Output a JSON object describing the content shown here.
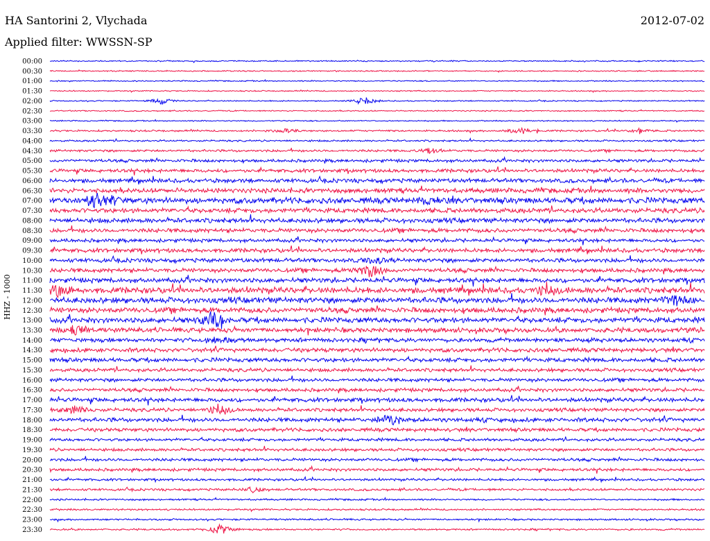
{
  "header": {
    "station": "HA Santorini 2, Vlychada",
    "date": "2012-07-02",
    "filter": "Applied filter: WWSSN-SP"
  },
  "channel_label": "HHZ - 1000",
  "colors": {
    "even_row": "#0000ee",
    "odd_row": "#ee1144"
  },
  "chart_data": {
    "type": "line",
    "title": "HA Santorini 2, Vlychada",
    "subtitle": "Applied filter: WWSSN-SP",
    "ylabel": "HHZ - 1000",
    "tick_labels": [
      "00:00",
      "00:30",
      "01:00",
      "01:30",
      "02:00",
      "02:30",
      "03:00",
      "03:30",
      "04:00",
      "04:30",
      "05:00",
      "05:30",
      "06:00",
      "06:30",
      "07:00",
      "07:30",
      "08:00",
      "08:30",
      "09:00",
      "09:30",
      "10:00",
      "10:30",
      "11:00",
      "11:30",
      "12:00",
      "12:30",
      "13:00",
      "13:30",
      "14:00",
      "14:30",
      "15:00",
      "15:30",
      "16:00",
      "16:30",
      "17:00",
      "17:30",
      "18:00",
      "18:30",
      "19:00",
      "19:30",
      "20:00",
      "20:30",
      "21:00",
      "21:30",
      "22:00",
      "22:30",
      "23:00",
      "23:30"
    ],
    "noise_level": [
      1,
      1,
      1,
      1,
      1,
      1,
      1,
      1.5,
      1.5,
      2,
      2.5,
      3,
      3.5,
      4,
      5,
      4,
      4,
      3.5,
      3,
      3.5,
      3.5,
      3.5,
      4,
      5,
      5,
      4.5,
      4.5,
      4,
      3.5,
      3.5,
      3.5,
      3,
      3,
      3,
      3.5,
      3,
      3.5,
      3,
      2.5,
      2.5,
      2.5,
      2.5,
      2,
      2,
      1.5,
      1.5,
      1.5,
      1.5
    ],
    "events": [
      {
        "row": 4,
        "t": 0.17,
        "amp": 6
      },
      {
        "row": 4,
        "t": 0.48,
        "amp": 8
      },
      {
        "row": 7,
        "t": 0.72,
        "amp": 7
      },
      {
        "row": 7,
        "t": 0.36,
        "amp": 4
      },
      {
        "row": 7,
        "t": 0.9,
        "amp": 5
      },
      {
        "row": 9,
        "t": 0.58,
        "amp": 5
      },
      {
        "row": 14,
        "t": 0.07,
        "amp": 12
      },
      {
        "row": 14,
        "t": 0.1,
        "amp": 8
      },
      {
        "row": 14,
        "t": 0.58,
        "amp": 7
      },
      {
        "row": 20,
        "t": 0.5,
        "amp": 6
      },
      {
        "row": 21,
        "t": 0.49,
        "amp": 16
      },
      {
        "row": 23,
        "t": 0.01,
        "amp": 16
      },
      {
        "row": 23,
        "t": 0.76,
        "amp": 12
      },
      {
        "row": 24,
        "t": 0.96,
        "amp": 10
      },
      {
        "row": 26,
        "t": 0.25,
        "amp": 14
      },
      {
        "row": 27,
        "t": 0.04,
        "amp": 9
      },
      {
        "row": 28,
        "t": 0.26,
        "amp": 7
      },
      {
        "row": 35,
        "t": 0.04,
        "amp": 7
      },
      {
        "row": 35,
        "t": 0.26,
        "amp": 12
      },
      {
        "row": 36,
        "t": 0.52,
        "amp": 9
      },
      {
        "row": 43,
        "t": 0.31,
        "amp": 6
      },
      {
        "row": 47,
        "t": 0.26,
        "amp": 10
      }
    ]
  }
}
